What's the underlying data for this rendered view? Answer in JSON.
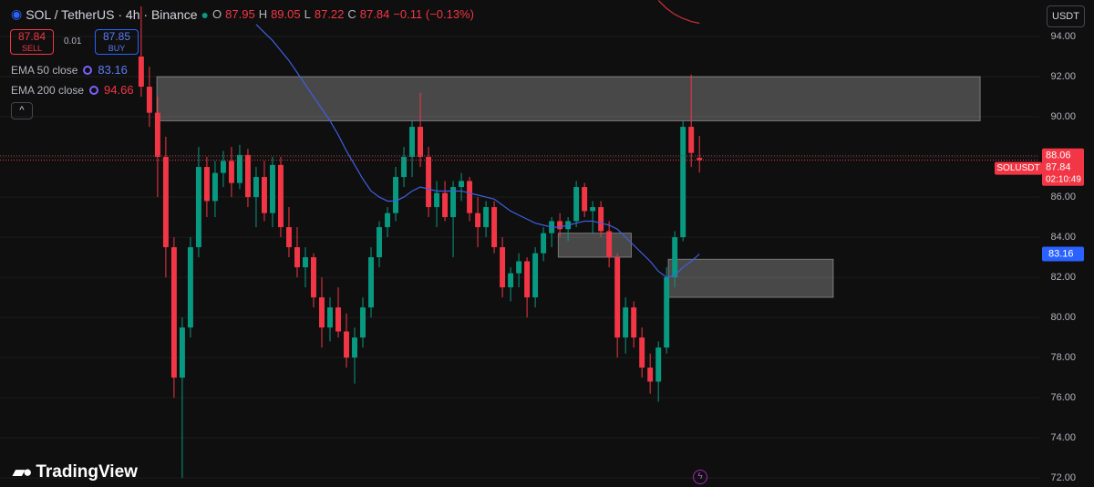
{
  "header": {
    "symbol": "SOL / TetherUS · 4h · Binance",
    "ohlc_labels": [
      "O",
      "H",
      "L",
      "C"
    ],
    "change": "−0.11 (−0.13%)",
    "sell_label": "SELL",
    "buy_label": "BUY",
    "buy_price": 87.85,
    "spread": 0.01
  },
  "currency": "USDT",
  "brand": "TradingView",
  "chart_data": {
    "type": "candlestick",
    "grid": true,
    "up_color": "#089981",
    "down_color": "#f23645",
    "open": [
      93,
      91.5,
      90.2,
      88,
      83.5,
      77,
      79.5,
      83.5,
      87.5,
      85.8,
      87.2,
      87.8,
      86.7,
      88.1,
      86,
      87,
      85.2,
      87.6,
      84.5,
      83.5,
      82.5,
      83,
      81,
      79.5,
      80.5,
      79.3,
      78,
      79,
      80.5,
      83,
      84.5,
      85.2,
      87,
      88,
      89.5,
      88,
      85.5,
      86.2,
      85,
      86.5,
      86.8,
      85.2,
      84.5,
      85.5,
      83.5,
      81.5,
      82.2,
      82.8,
      81,
      83.2,
      84.2,
      84.8,
      84.4,
      84.8,
      86.5,
      85.3,
      85.5,
      84.3,
      83,
      79,
      80.5,
      79,
      77.5,
      76.8,
      78.5,
      82,
      84,
      89.5,
      87.95
    ],
    "high": [
      95.5,
      92.5,
      91,
      89,
      84,
      80,
      84,
      88.5,
      88,
      87.8,
      88.3,
      88.5,
      88.6,
      88.4,
      87.5,
      87.8,
      88,
      88,
      85.5,
      84.5,
      83.5,
      83.2,
      82,
      81,
      81.5,
      80.2,
      79.5,
      81,
      83.5,
      84.8,
      85.5,
      87.5,
      88.5,
      89.8,
      91.2,
      88.5,
      86.8,
      86.8,
      86.8,
      87.2,
      87,
      86,
      85.8,
      85.8,
      84,
      82.5,
      83.2,
      83,
      83.5,
      84.5,
      85,
      85.2,
      85,
      86.8,
      86.7,
      85.8,
      85.8,
      84.8,
      83.2,
      81,
      80.8,
      79.5,
      78.2,
      78.8,
      82.5,
      84.3,
      89.8,
      92.1,
      89.05
    ],
    "low": [
      91,
      89.5,
      86,
      82,
      76,
      72,
      79,
      83,
      85,
      85,
      86.5,
      86,
      86.4,
      85.5,
      84.5,
      84.8,
      84.5,
      84,
      83,
      82,
      81.5,
      80.5,
      78.5,
      78.8,
      79,
      77.5,
      76.7,
      78.5,
      80,
      82.5,
      84,
      84.8,
      86.5,
      87,
      87.5,
      85,
      84.5,
      84.8,
      83,
      85.8,
      84.8,
      83.5,
      84,
      83.2,
      81,
      80.8,
      81.5,
      80,
      80.5,
      82.8,
      83.5,
      84,
      83.8,
      84.5,
      85,
      84.2,
      84,
      82.5,
      78,
      78.2,
      78.5,
      77,
      76.2,
      75.8,
      78.2,
      81.5,
      83.8,
      87.5,
      87.22
    ],
    "close": [
      91.5,
      90.2,
      88,
      83.5,
      77,
      79.5,
      83.5,
      87.5,
      85.8,
      87.2,
      87.8,
      86.7,
      88.1,
      86,
      87,
      85.2,
      87.6,
      84.5,
      83.5,
      82.5,
      83,
      81,
      79.5,
      80.5,
      79.3,
      78,
      79,
      80.5,
      83,
      84.5,
      85.2,
      87,
      88,
      89.5,
      88,
      85.5,
      86.2,
      85,
      86.5,
      86.8,
      85.2,
      84.5,
      85.5,
      83.5,
      81.5,
      82.2,
      82.8,
      81,
      83.2,
      84.2,
      84.8,
      84.4,
      84.8,
      86.5,
      85.3,
      85.5,
      84.3,
      83,
      79,
      80.5,
      79,
      77.5,
      76.8,
      78.5,
      82,
      84,
      89.5,
      88.2,
      87.84
    ],
    "series": [
      {
        "name": "EMA 50 close",
        "color": "#3f5fe0",
        "values": [
          null,
          null,
          null,
          null,
          null,
          null,
          null,
          null,
          null,
          null,
          null,
          null,
          null,
          null,
          94.6,
          94.2,
          93.8,
          93.3,
          92.8,
          92.2,
          91.6,
          91.0,
          90.4,
          89.8,
          89.1,
          88.3,
          87.6,
          86.9,
          86.3,
          86.0,
          85.8,
          85.8,
          86.0,
          86.3,
          86.5,
          86.4,
          86.3,
          86.3,
          86.3,
          86.3,
          86.2,
          86.1,
          86.0,
          85.9,
          85.6,
          85.3,
          85.1,
          84.9,
          84.7,
          84.6,
          84.5,
          84.5,
          84.6,
          84.7,
          84.8,
          84.8,
          84.7,
          84.6,
          84.4,
          84.0,
          83.6,
          83.2,
          82.8,
          82.3,
          82.0,
          82.1,
          82.5,
          82.8,
          83.16
        ]
      },
      {
        "name": "EMA 200 close",
        "color": "#c8303c",
        "values": [
          null,
          null,
          null,
          null,
          null,
          null,
          null,
          null,
          null,
          null,
          null,
          null,
          null,
          null,
          null,
          null,
          null,
          null,
          null,
          null,
          null,
          null,
          null,
          null,
          null,
          null,
          null,
          null,
          null,
          null,
          null,
          null,
          null,
          null,
          null,
          null,
          null,
          null,
          null,
          null,
          null,
          null,
          null,
          null,
          null,
          null,
          null,
          null,
          null,
          null,
          null,
          null,
          null,
          null,
          null,
          null,
          null,
          null,
          null,
          null,
          null,
          null,
          null,
          95.8,
          95.4,
          95.1,
          94.9,
          94.75,
          94.66
        ]
      }
    ],
    "zones": [
      {
        "low": 89.8,
        "high": 92.0,
        "start": 1.9,
        "end": 102.2
      },
      {
        "low": 83.0,
        "high": 84.2,
        "start": 50.8,
        "end": 59.7
      },
      {
        "low": 81.0,
        "high": 82.9,
        "start": 64.2,
        "end": 84.3
      }
    ],
    "axis_price": 88.06,
    "symbol_tag": "SOLUSDT",
    "countdown": "02:10:49",
    "xlim": [
      -17.2,
      109.4
    ],
    "ylim": [
      71.55,
      95.82
    ],
    "yticks": [
      {
        "value": 72,
        "label": "72.00"
      },
      {
        "value": 74,
        "label": "74.00"
      },
      {
        "value": 76,
        "label": "76.00"
      },
      {
        "value": 78,
        "label": "78.00"
      },
      {
        "value": 80,
        "label": "80.00"
      },
      {
        "value": 82,
        "label": "82.00"
      },
      {
        "value": 84,
        "label": "84.00"
      },
      {
        "value": 86,
        "label": "86.00"
      },
      {
        "value": 88,
        "label": "88.00"
      },
      {
        "value": 90,
        "label": "90.00"
      },
      {
        "value": 92,
        "label": "92.00"
      },
      {
        "value": 94,
        "label": "94.00"
      }
    ]
  }
}
